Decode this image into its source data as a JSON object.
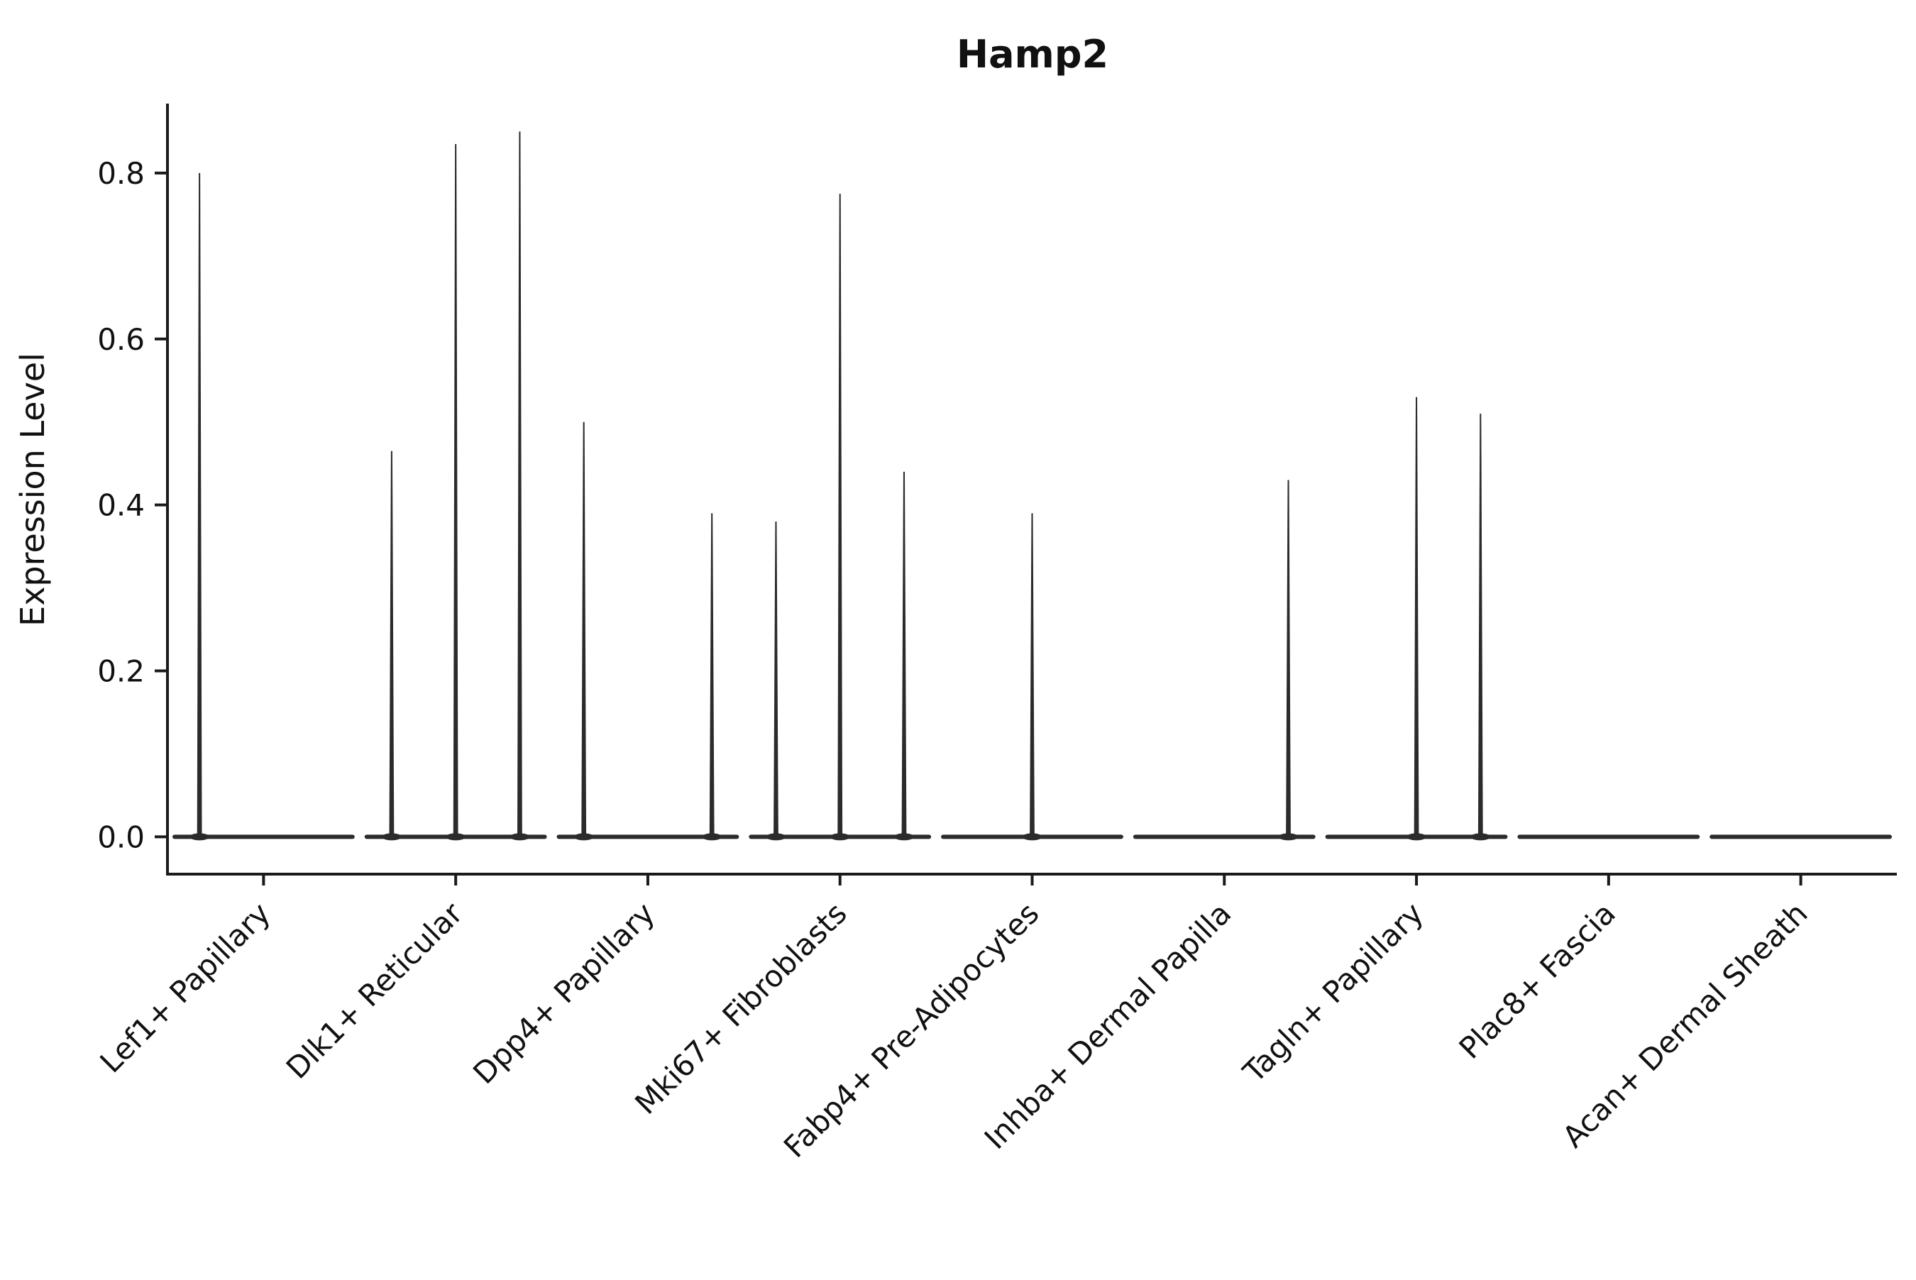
{
  "chart_data": {
    "type": "violin",
    "title": "Hamp2",
    "ylabel": "Expression Level",
    "xlabel": "",
    "ylim": [
      -0.045,
      0.882
    ],
    "yticks": [
      0.0,
      0.2,
      0.4,
      0.6,
      0.8
    ],
    "grid": false,
    "legend": false,
    "x_tick_rotation_deg": 45,
    "violin_color": "#2b2b2b",
    "axis_color": "#1a1a1a",
    "baseline_value": 0.0,
    "slots_per_category": 3,
    "note": "Each category shows a flat violin baseline at 0 with up to 3 narrow spike violins (left/center/right sub-positions); values below are the spike maxima (max expression level). null = no spike at that sub-position.",
    "categories": [
      "Lef1+ Papillary",
      "Dlk1+ Reticular",
      "Dpp4+ Papillary",
      "Mki67+ Fibroblasts",
      "Fabp4+ Pre-Adipocytes",
      "Inhba+ Dermal Papilla",
      "Tagln+ Papillary",
      "Plac8+ Fascia",
      "Acan+ Dermal Sheath"
    ],
    "spike_maxima": [
      [
        0.8,
        null,
        null
      ],
      [
        0.465,
        0.835,
        0.85
      ],
      [
        0.5,
        null,
        0.39
      ],
      [
        0.38,
        0.775,
        0.44
      ],
      [
        null,
        0.39,
        null
      ],
      [
        null,
        null,
        0.43
      ],
      [
        null,
        0.53,
        0.51
      ],
      [
        null,
        null,
        null
      ],
      [
        null,
        null,
        null
      ]
    ]
  }
}
